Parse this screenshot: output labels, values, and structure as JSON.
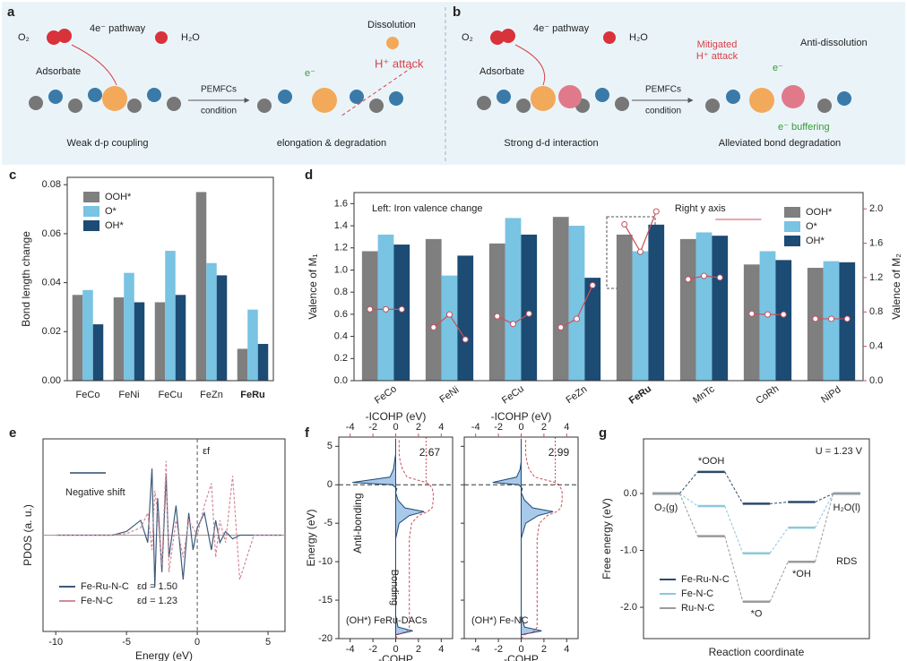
{
  "panel_labels": [
    "a",
    "b",
    "c",
    "d",
    "e",
    "f",
    "g"
  ],
  "schematics": {
    "a": [
      "O₂",
      "4e⁻ pathway",
      "H₂O",
      "Adsorbate",
      "Dissolution",
      "e⁻",
      "H⁺ attack",
      "PEMFCs",
      "condition",
      "Weak d-p coupling",
      "elongation & degradation"
    ],
    "b": [
      "O₂",
      "4e⁻ pathway",
      "H₂O",
      "Adsorbate",
      "Mitigated",
      "H⁺ attack",
      "Anti-dissolution",
      "e⁻",
      "PEMFCs",
      "condition",
      "e⁻ buffering",
      "Strong d-d interaction",
      "Alleviated bond degradation"
    ]
  },
  "chart_data": [
    {
      "type": "bar",
      "ylabel": "Bond length change",
      "categories": [
        "FeCo",
        "FeNi",
        "FeCu",
        "FeZn",
        "FeRu"
      ],
      "bold_categories": [
        4
      ],
      "series": [
        {
          "name": "OOH*",
          "color": "#7f7f7f",
          "values": [
            0.035,
            0.034,
            0.032,
            0.077,
            0.013
          ]
        },
        {
          "name": "O*",
          "color": "#79c3e3",
          "values": [
            0.037,
            0.044,
            0.053,
            0.048,
            0.029
          ]
        },
        {
          "name": "OH*",
          "color": "#1c4b74",
          "values": [
            0.023,
            0.032,
            0.035,
            0.043,
            0.015
          ]
        }
      ],
      "ylim": [
        0,
        0.083
      ],
      "yticks": [
        {
          "value": 0,
          "label": "0.00"
        },
        {
          "value": 0.02,
          "label": "0.02"
        },
        {
          "value": 0.04,
          "label": "0.04"
        },
        {
          "value": 0.06,
          "label": "0.06"
        },
        {
          "value": 0.08,
          "label": "0.08"
        }
      ],
      "legend": "upper left"
    },
    {
      "type": "bar",
      "ylabel": "Valence of M₁",
      "y2label": "Valence of M₂",
      "categories": [
        "FeCo",
        "FeNi",
        "FeCu",
        "FeZn",
        "FeRu",
        "MnTc",
        "CoRh",
        "NiPd"
      ],
      "bold_categories": [
        4
      ],
      "series": [
        {
          "name": "OOH*",
          "color": "#7f7f7f",
          "values": [
            1.17,
            1.28,
            1.24,
            1.48,
            1.32,
            1.28,
            1.05,
            1.02
          ]
        },
        {
          "name": "O*",
          "color": "#79c3e3",
          "values": [
            1.32,
            0.95,
            1.47,
            1.4,
            1.17,
            1.34,
            1.17,
            1.08
          ]
        },
        {
          "name": "OH*",
          "color": "#1c4b74",
          "values": [
            1.23,
            1.13,
            1.32,
            0.93,
            1.41,
            1.31,
            1.09,
            1.07
          ]
        }
      ],
      "y2_series": {
        "color": "#c8505c",
        "values": [
          [
            0.83,
            0.83,
            0.83
          ],
          [
            0.62,
            0.77,
            0.48
          ],
          [
            0.75,
            0.66,
            0.78
          ],
          [
            0.62,
            0.72,
            1.11
          ],
          [
            1.82,
            1.5,
            1.97
          ],
          [
            1.18,
            1.22,
            1.2
          ],
          [
            0.78,
            0.77,
            0.77
          ],
          [
            0.72,
            0.72,
            0.72
          ]
        ]
      },
      "ylim": [
        0,
        1.7
      ],
      "yticks": [
        {
          "value": 0,
          "label": "0.0"
        },
        0.2,
        0.4,
        0.6,
        0.8,
        {
          "value": 1,
          "label": "1.0"
        },
        1.2,
        1.4,
        1.6
      ],
      "y2lim": [
        0,
        2.19
      ],
      "y2ticks": [
        {
          "value": 0,
          "label": "0.0"
        },
        0.4,
        0.8,
        1.2,
        1.6,
        {
          "value": 2,
          "label": "2.0"
        }
      ],
      "annotations": [
        "Left: Iron valence change",
        "Right y axis"
      ],
      "legend": "upper right"
    },
    {
      "type": "line",
      "xlabel": "Energy (eV)",
      "ylabel": "PDOS (a. u.)",
      "x": [
        -10,
        -6,
        -5,
        -4,
        -3.5,
        -3.2,
        -3,
        -2.8,
        -2.5,
        -2.2,
        -2,
        -1.5,
        -1,
        -0.6,
        -0.3,
        0,
        0.5,
        1,
        1.3,
        1.6,
        2,
        2.5,
        3,
        4,
        6
      ],
      "series": [
        {
          "name": "Fe-Ru-N-C",
          "color": "#3d5a7a",
          "values": [
            0,
            0,
            0.05,
            0.2,
            -0.1,
            0.9,
            -0.7,
            0.5,
            -0.5,
            0.8,
            -0.3,
            0.4,
            -0.6,
            0.3,
            -0.2,
            0.1,
            0.3,
            -0.2,
            0.2,
            -0.1,
            0.05,
            -0.05,
            0,
            0,
            0
          ]
        },
        {
          "name": "Fe-N-C",
          "color": "#d48a98",
          "values": [
            0,
            0,
            0.02,
            0.1,
            0.3,
            -0.2,
            0.6,
            0.3,
            -0.4,
            1.0,
            -0.5,
            0.2,
            -0.3,
            0.2,
            0.1,
            0,
            0.4,
            0.7,
            -0.3,
            0.2,
            -0.1,
            0.8,
            -0.6,
            0,
            0
          ]
        }
      ],
      "xlim": [
        -10.9,
        6.2
      ],
      "xticks": [
        -10,
        -5,
        0,
        5
      ],
      "ylim": [
        -1.3,
        1.3
      ],
      "vline": 0,
      "annotations": [
        "Negative shift",
        "εf",
        "εd = 1.50",
        "εd = 1.23"
      ],
      "legend": "lower left"
    },
    {
      "type": "cohp",
      "label": "(OH*) FeRu-DACs",
      "ylabel": "Energy (eV)",
      "xlabel": "-COHP",
      "x2label": "-ICOHP (eV)",
      "energy": [
        -20,
        -19.5,
        -19,
        -18.5,
        -17,
        -14,
        -10,
        -7,
        -5,
        -4,
        -3.5,
        -3,
        -2,
        -1,
        -0.5,
        0,
        0.3,
        1,
        2,
        3,
        4,
        6
      ],
      "cohp": [
        0,
        0,
        1.5,
        0.2,
        0,
        0,
        0,
        0,
        0.3,
        1.2,
        2.5,
        0.8,
        0.2,
        0,
        0.1,
        -0.3,
        -3.8,
        -0.5,
        -0.2,
        -0.1,
        0,
        0
      ],
      "icohp": [
        0,
        0.2,
        1.0,
        1.2,
        1.2,
        1.2,
        1.2,
        1.2,
        1.4,
        2.0,
        2.8,
        3.2,
        3.3,
        3.3,
        3.2,
        3.0,
        2.67,
        1.0,
        0.6,
        0.4,
        0.3,
        0.3
      ],
      "icohp_fermi": 2.67,
      "hline": 0,
      "ylim": [
        -20,
        6.2
      ],
      "yticks": [
        5,
        0,
        -5,
        -10,
        -15,
        -20
      ],
      "xlim": [
        -5,
        5
      ],
      "xticks": [
        -4,
        -2,
        0,
        2,
        4
      ],
      "x2lim": [
        -5,
        5
      ],
      "x2ticks": [
        -4,
        -2,
        0,
        2,
        4
      ],
      "annotations": [
        "Anti-bonding",
        "Bonding"
      ]
    },
    {
      "type": "cohp",
      "label": "(OH*) Fe-NC",
      "xlabel": "-COHP",
      "x2label": "-ICOHP (eV)",
      "energy": [
        -20,
        -19.5,
        -19,
        -18.5,
        -17,
        -14,
        -10,
        -7,
        -5,
        -4,
        -3.5,
        -3,
        -2,
        -1,
        -0.5,
        0,
        0.3,
        1,
        2,
        3,
        4,
        6
      ],
      "cohp": [
        0,
        0,
        1.8,
        0.3,
        0,
        0,
        0,
        0,
        0.4,
        1.5,
        2.8,
        1.0,
        0.3,
        0,
        0.1,
        -0.2,
        -2.5,
        -0.4,
        -0.1,
        0,
        0,
        0
      ],
      "icohp": [
        0,
        0.3,
        1.2,
        1.4,
        1.4,
        1.4,
        1.4,
        1.4,
        1.6,
        2.3,
        3.1,
        3.5,
        3.6,
        3.6,
        3.5,
        3.3,
        2.99,
        1.2,
        0.7,
        0.5,
        0.4,
        0.4
      ],
      "icohp_fermi": 2.99,
      "hline": 0,
      "ylim": [
        -20,
        6.2
      ],
      "xlim": [
        -5,
        5
      ],
      "xticks": [
        -4,
        -2,
        0,
        2,
        4
      ],
      "x2lim": [
        -5,
        5
      ],
      "x2ticks": [
        -4,
        -2,
        0,
        2,
        4
      ]
    },
    {
      "type": "step",
      "xlabel": "Reaction coordinate",
      "ylabel": "Free energy (eV)",
      "states": [
        "O₂(g)",
        "*OOH",
        "*O",
        "*OH",
        "H₂O(l)"
      ],
      "series": [
        {
          "name": "Fe-Ru-N-C",
          "color": "#2b4a6a",
          "values": [
            0,
            0.38,
            -0.18,
            -0.15,
            0
          ]
        },
        {
          "name": "Fe-N-C",
          "color": "#8cc7dc",
          "values": [
            0,
            -0.22,
            -1.05,
            -0.6,
            0
          ]
        },
        {
          "name": "Ru-N-C",
          "color": "#9a9a9a",
          "values": [
            0,
            -0.75,
            -1.9,
            -1.2,
            0
          ]
        }
      ],
      "ylim": [
        -2.55,
        0.96
      ],
      "yticks": [
        {
          "value": 0,
          "label": "0.0"
        },
        {
          "value": -1,
          "label": "-1.0"
        },
        {
          "value": -2,
          "label": "-2.0"
        }
      ],
      "annotations": [
        "U = 1.23 V",
        "RDS"
      ],
      "legend": "lower left"
    }
  ]
}
